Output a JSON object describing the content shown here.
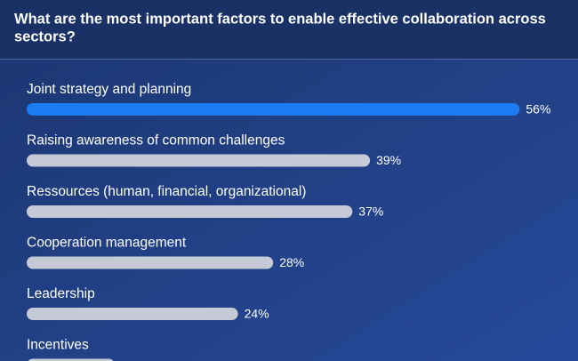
{
  "chart_data": {
    "type": "hbar",
    "title": [
      "What are the most important factors to enable effective collaboration across",
      "sectors?"
    ],
    "categories": [
      "Joint strategy and planning",
      "Raising awareness of common challenges",
      "Ressources (human, financial, organizational)",
      "Cooperation management",
      "Leadership",
      "Incentives"
    ],
    "values": [
      56,
      39,
      37,
      28,
      24,
      10
    ],
    "value_labels": [
      "56%",
      "39%",
      "37%",
      "28%",
      "24%",
      null
    ],
    "colors": [
      "#1a7cf0",
      "#c6cad6",
      "#c6cad6",
      "#c6cad6",
      "#c6cad6",
      "#c6cad6"
    ]
  }
}
